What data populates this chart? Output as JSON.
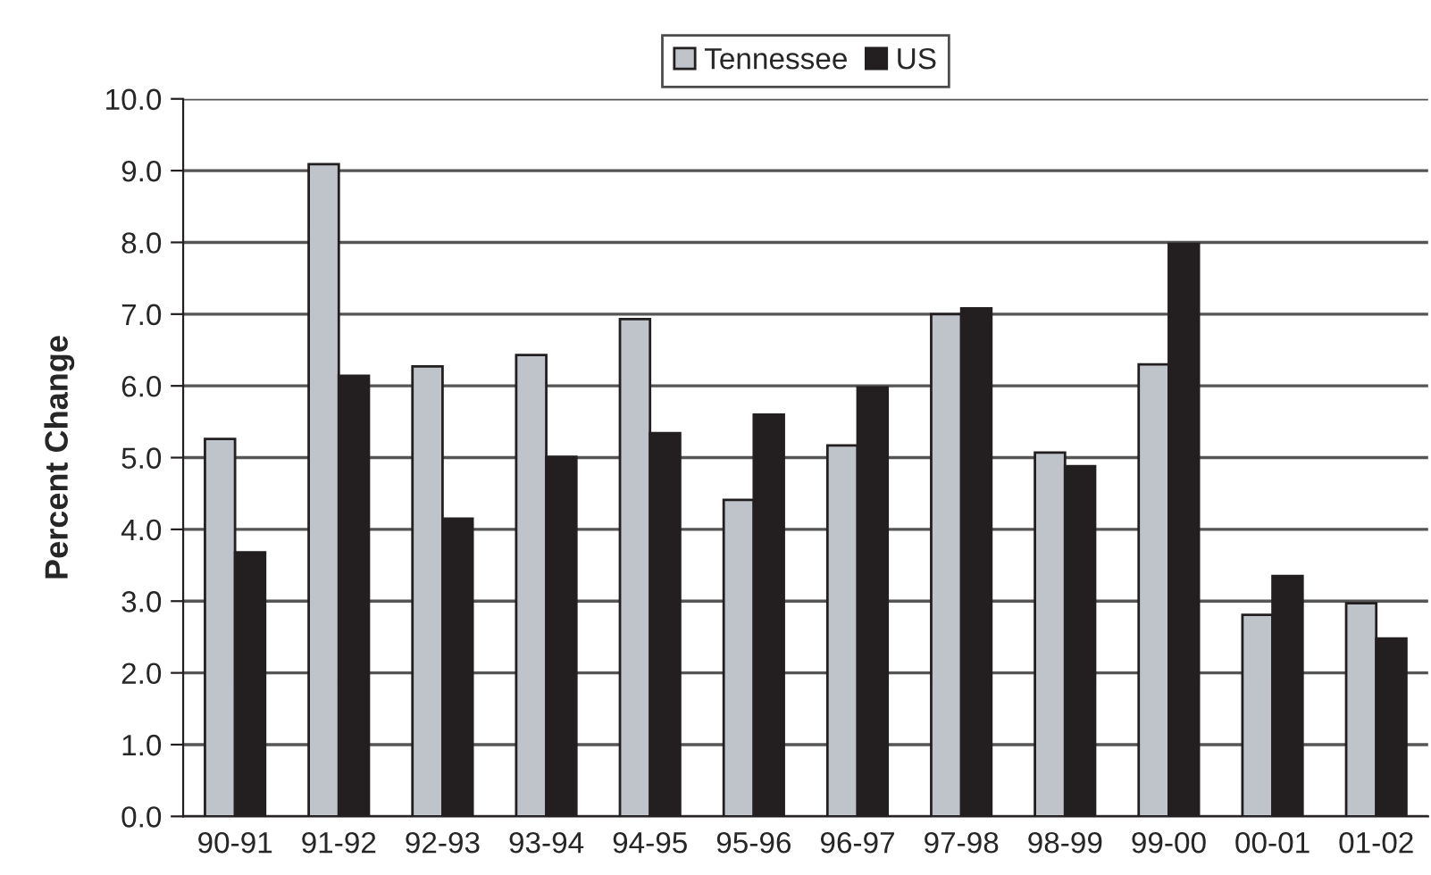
{
  "chart_data": {
    "type": "bar",
    "ylabel": "Percent Change",
    "categories": [
      "90-91",
      "91-92",
      "92-93",
      "93-94",
      "94-95",
      "95-96",
      "96-97",
      "97-98",
      "98-99",
      "99-00",
      "00-01",
      "01-02"
    ],
    "series": [
      {
        "name": "Tennessee",
        "color": "#bfc3ca",
        "values": [
          5.26,
          9.09,
          6.27,
          6.43,
          6.93,
          4.41,
          5.17,
          7.0,
          5.07,
          6.3,
          2.81,
          2.97
        ]
      },
      {
        "name": "US",
        "color": "#231f20",
        "values": [
          3.68,
          6.14,
          4.15,
          5.01,
          5.34,
          5.6,
          5.98,
          7.08,
          4.88,
          7.98,
          3.35,
          2.48
        ]
      }
    ],
    "ylim": [
      0,
      10
    ],
    "yticks": [
      {
        "value": 0,
        "label": "0.0"
      },
      {
        "value": 1,
        "label": "1.0"
      },
      {
        "value": 2,
        "label": "2.0"
      },
      {
        "value": 3,
        "label": "3.0"
      },
      {
        "value": 4,
        "label": "4.0"
      },
      {
        "value": 5,
        "label": "5.0"
      },
      {
        "value": 6,
        "label": "6.0"
      },
      {
        "value": 7,
        "label": "7.0"
      },
      {
        "value": 8,
        "label": "8.0"
      },
      {
        "value": 9,
        "label": "9.0"
      },
      {
        "value": 10,
        "label": "10.0"
      }
    ],
    "grid": "y",
    "legend": "top"
  }
}
